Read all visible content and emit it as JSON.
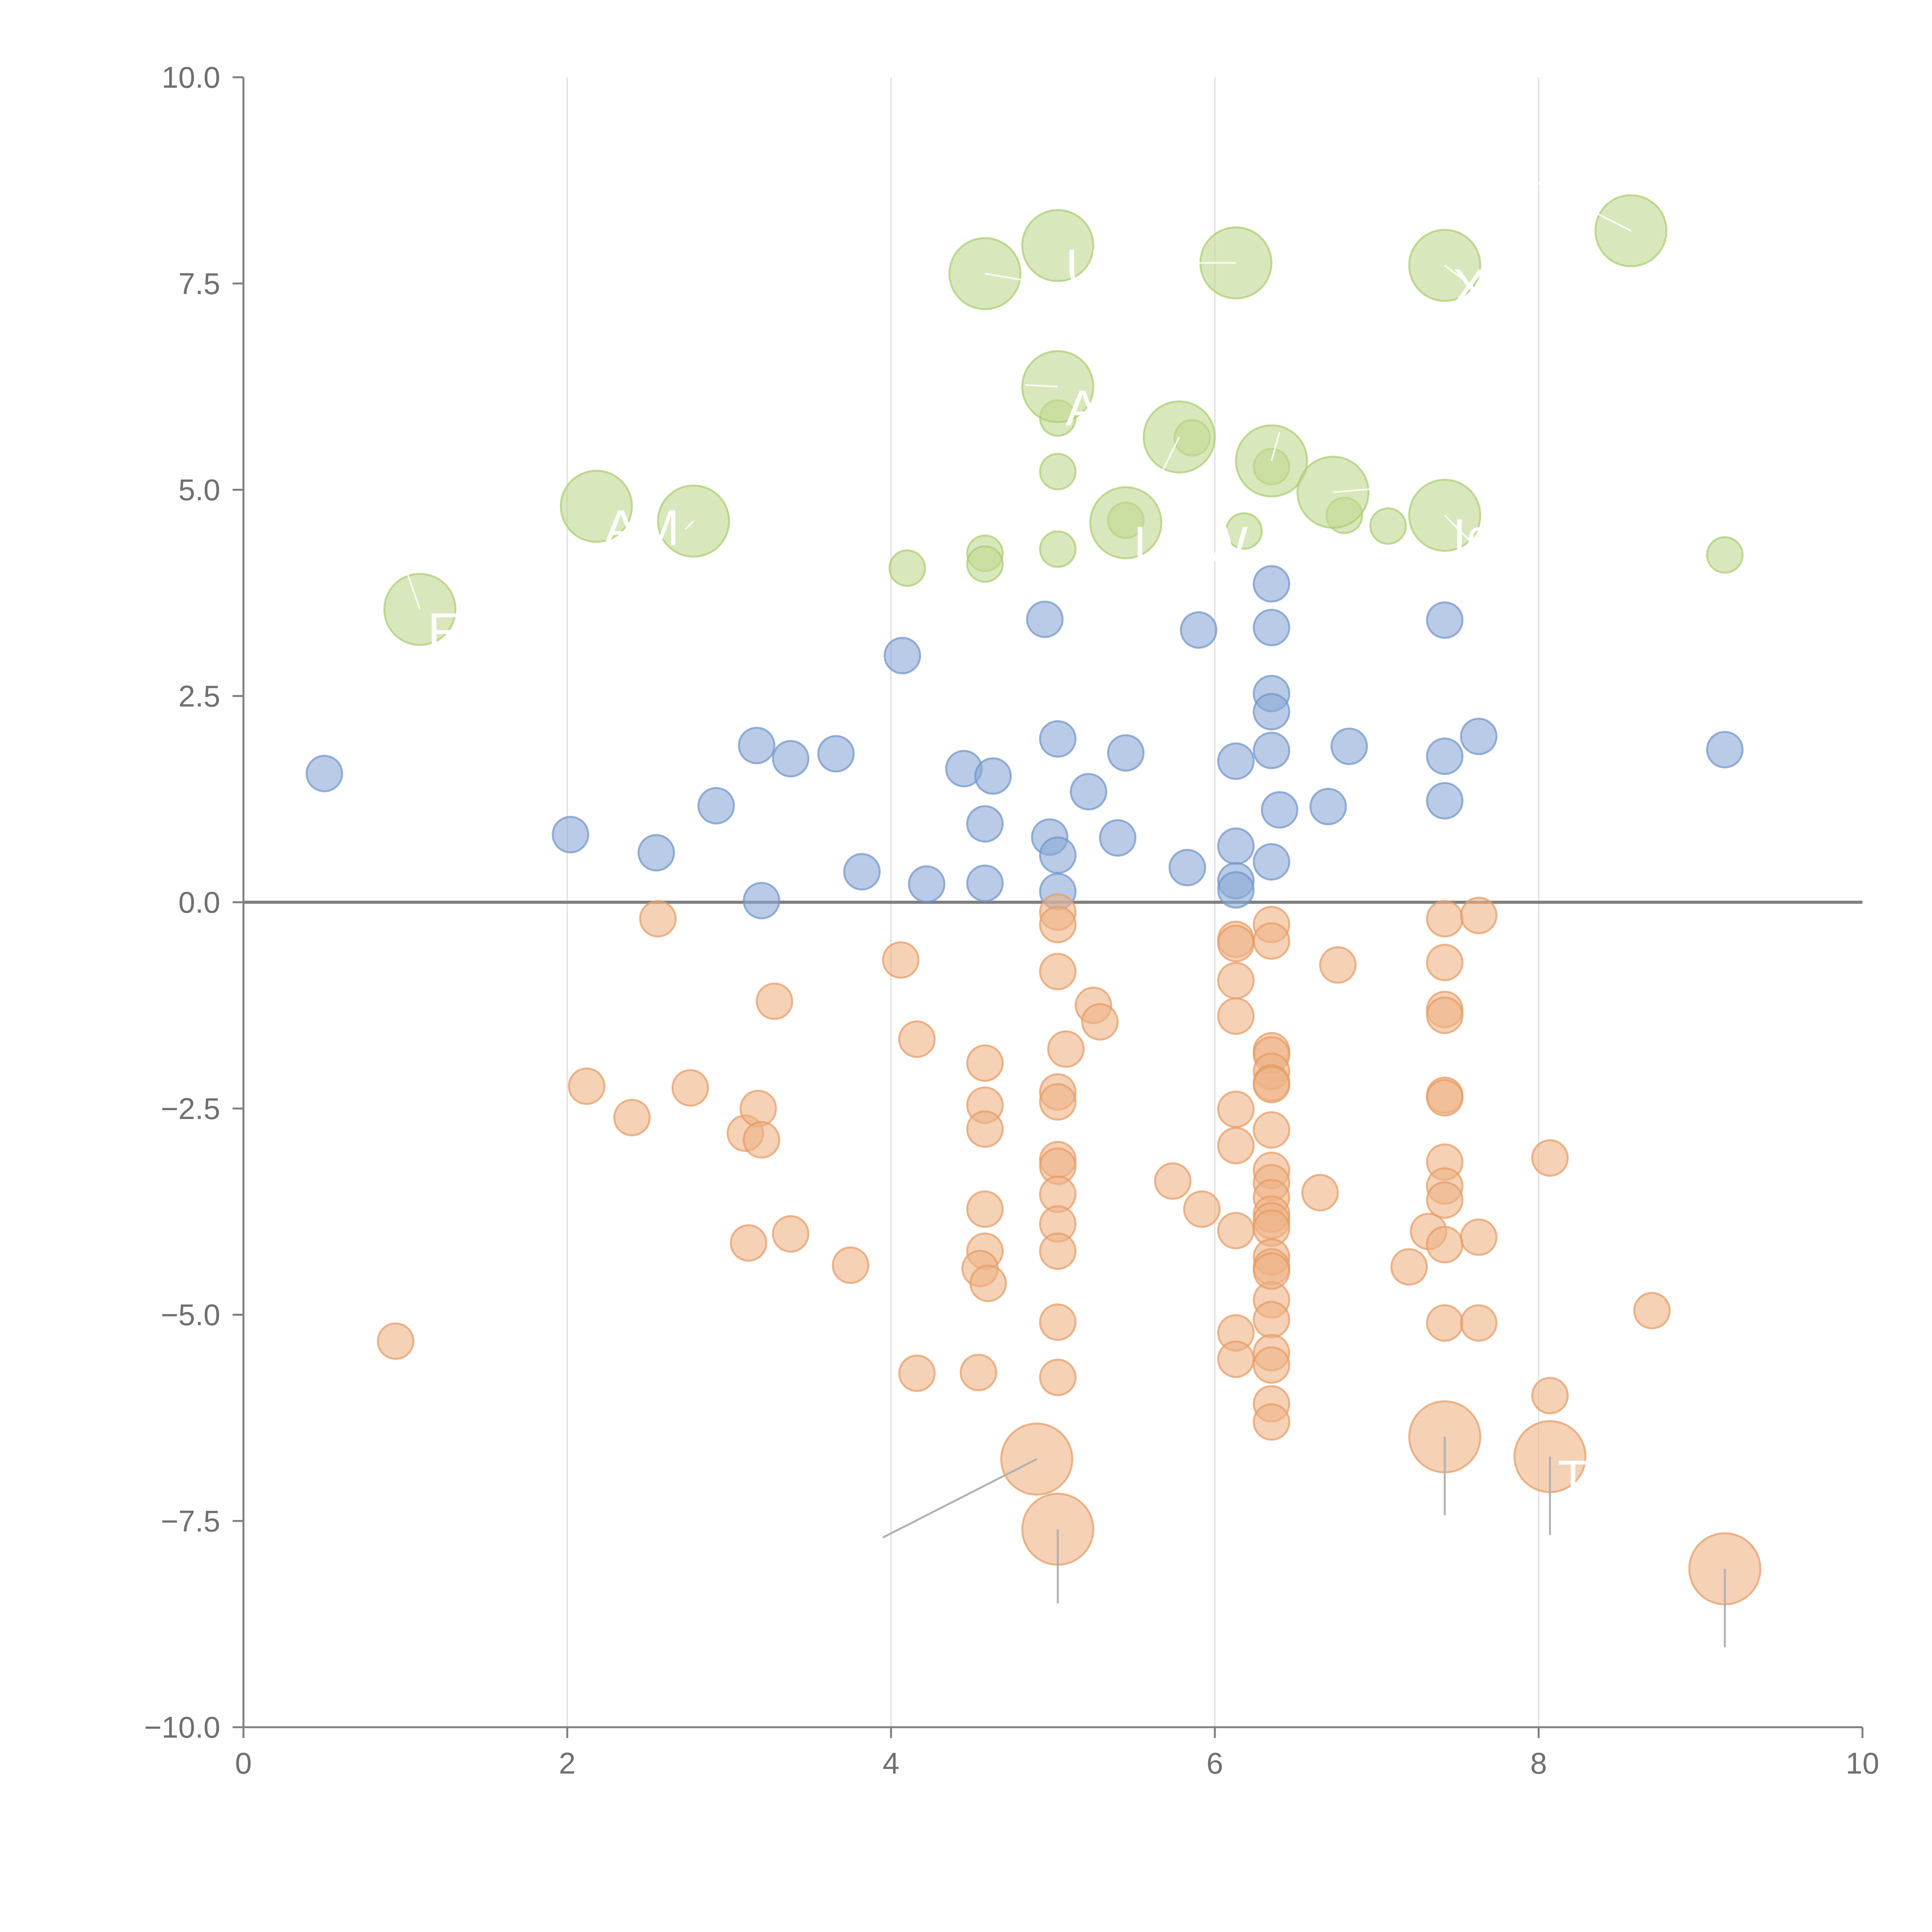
{
  "colors": {
    "positive": "#8ba9d6",
    "negative": "#efb385",
    "highlight": "#bfd98f",
    "axis": "#7f7f7f",
    "grid": "#dddddd",
    "label": "#ffffff",
    "leader": "#b0b0b0"
  },
  "chart_data": {
    "type": "scatter",
    "title": "",
    "xlabel": "",
    "ylabel": "",
    "xlim": [
      0,
      10
    ],
    "ylim": [
      -10,
      10
    ],
    "x_ticks": [
      "0",
      "2",
      "4",
      "6",
      "8",
      "10"
    ],
    "y_ticks": [
      "10.0",
      "7.5",
      "5.0",
      "2.5",
      "0.0",
      "−2.5",
      "−5.0",
      "−7.5",
      "−10.0"
    ],
    "grid": "vertical",
    "legend": "none",
    "series": [
      {
        "name": "positive",
        "points": [
          [
            0.5,
            1.56
          ],
          [
            2.02,
            0.82
          ],
          [
            2.55,
            0.6
          ],
          [
            2.92,
            1.17
          ],
          [
            3.17,
            1.9
          ],
          [
            3.2,
            0.02
          ],
          [
            3.38,
            1.74
          ],
          [
            3.66,
            1.8
          ],
          [
            3.82,
            0.37
          ],
          [
            4.07,
            2.99
          ],
          [
            4.22,
            0.22
          ],
          [
            4.45,
            1.62
          ],
          [
            4.58,
            0.95
          ],
          [
            4.58,
            0.23
          ],
          [
            4.63,
            1.53
          ],
          [
            4.95,
            3.43
          ],
          [
            4.98,
            0.79
          ],
          [
            5.03,
            1.98
          ],
          [
            5.03,
            0.57
          ],
          [
            5.03,
            0.13
          ],
          [
            5.22,
            1.34
          ],
          [
            5.4,
            0.78
          ],
          [
            5.45,
            1.81
          ],
          [
            5.83,
            0.42
          ],
          [
            5.9,
            3.3
          ],
          [
            6.13,
            1.71
          ],
          [
            6.13,
            0.68
          ],
          [
            6.13,
            0.26
          ],
          [
            6.13,
            0.15
          ],
          [
            6.35,
            3.86
          ],
          [
            6.35,
            3.33
          ],
          [
            6.35,
            2.53
          ],
          [
            6.35,
            2.31
          ],
          [
            6.35,
            1.84
          ],
          [
            6.35,
            0.49
          ],
          [
            6.4,
            1.12
          ],
          [
            6.7,
            1.16
          ],
          [
            6.83,
            1.89
          ],
          [
            7.42,
            3.42
          ],
          [
            7.42,
            1.77
          ],
          [
            7.42,
            1.23
          ],
          [
            7.63,
            2.01
          ],
          [
            9.15,
            1.85
          ]
        ]
      },
      {
        "name": "negative",
        "points": [
          [
            0.94,
            -5.32
          ],
          [
            2.12,
            -2.23
          ],
          [
            2.4,
            -2.61
          ],
          [
            2.56,
            -0.2
          ],
          [
            2.76,
            -2.25
          ],
          [
            3.1,
            -2.8
          ],
          [
            3.12,
            -4.13
          ],
          [
            3.18,
            -2.5
          ],
          [
            3.2,
            -2.88
          ],
          [
            3.28,
            -1.2
          ],
          [
            3.38,
            -4.02
          ],
          [
            3.75,
            -4.4
          ],
          [
            4.06,
            -0.7
          ],
          [
            4.16,
            -1.66
          ],
          [
            4.16,
            -5.71
          ],
          [
            4.54,
            -5.7
          ],
          [
            4.58,
            -1.95
          ],
          [
            4.58,
            -2.46
          ],
          [
            4.58,
            -2.75
          ],
          [
            4.58,
            -3.72
          ],
          [
            4.58,
            -4.23
          ],
          [
            4.55,
            -4.44
          ],
          [
            4.6,
            -4.62
          ],
          [
            5.03,
            -0.12
          ],
          [
            5.03,
            -0.27
          ],
          [
            5.03,
            -0.84
          ],
          [
            5.03,
            -2.3
          ],
          [
            5.03,
            -2.42
          ],
          [
            5.03,
            -3.12
          ],
          [
            5.03,
            -3.2
          ],
          [
            5.03,
            -3.54
          ],
          [
            5.03,
            -3.9
          ],
          [
            5.03,
            -4.23
          ],
          [
            5.03,
            -5.09
          ],
          [
            5.03,
            -5.76
          ],
          [
            5.08,
            -1.78
          ],
          [
            5.25,
            -1.25
          ],
          [
            5.29,
            -1.45
          ],
          [
            5.74,
            -3.38
          ],
          [
            5.92,
            -3.72
          ],
          [
            6.13,
            -0.45
          ],
          [
            6.13,
            -0.5
          ],
          [
            6.13,
            -0.95
          ],
          [
            6.13,
            -1.38
          ],
          [
            6.13,
            -2.51
          ],
          [
            6.13,
            -2.95
          ],
          [
            6.13,
            -3.98
          ],
          [
            6.13,
            -5.22
          ],
          [
            6.13,
            -5.54
          ],
          [
            6.35,
            -0.27
          ],
          [
            6.35,
            -0.47
          ],
          [
            6.35,
            -1.8
          ],
          [
            6.35,
            -1.85
          ],
          [
            6.35,
            -2.05
          ],
          [
            6.35,
            -2.19
          ],
          [
            6.35,
            -2.21
          ],
          [
            6.35,
            -2.76
          ],
          [
            6.35,
            -3.25
          ],
          [
            6.35,
            -3.4
          ],
          [
            6.35,
            -3.58
          ],
          [
            6.35,
            -3.78
          ],
          [
            6.35,
            -3.86
          ],
          [
            6.35,
            -3.95
          ],
          [
            6.35,
            -4.3
          ],
          [
            6.35,
            -4.42
          ],
          [
            6.35,
            -4.82
          ],
          [
            6.35,
            -5.06
          ],
          [
            6.35,
            -5.46
          ],
          [
            6.35,
            -5.61
          ],
          [
            6.35,
            -6.08
          ],
          [
            6.35,
            -6.3
          ],
          [
            6.35,
            -4.47
          ],
          [
            6.65,
            -3.52
          ],
          [
            6.76,
            -0.76
          ],
          [
            7.2,
            -4.42
          ],
          [
            7.32,
            -3.99
          ],
          [
            7.42,
            -0.2
          ],
          [
            7.42,
            -0.73
          ],
          [
            7.42,
            -1.3
          ],
          [
            7.42,
            -1.37
          ],
          [
            7.42,
            -2.34
          ],
          [
            7.42,
            -2.37
          ],
          [
            7.42,
            -3.15
          ],
          [
            7.42,
            -3.44
          ],
          [
            7.42,
            -3.61
          ],
          [
            7.42,
            -4.15
          ],
          [
            7.42,
            -5.1
          ],
          [
            7.63,
            -0.16
          ],
          [
            7.63,
            -4.06
          ],
          [
            7.63,
            -5.1
          ],
          [
            8.07,
            -3.1
          ],
          [
            8.07,
            -5.98
          ],
          [
            8.7,
            -4.95
          ]
        ]
      },
      {
        "name": "highlight",
        "points": [
          [
            4.1,
            4.05
          ],
          [
            4.58,
            4.23
          ],
          [
            4.58,
            4.1
          ],
          [
            5.03,
            5.87
          ],
          [
            5.03,
            5.22
          ],
          [
            5.03,
            4.28
          ],
          [
            5.45,
            4.63
          ],
          [
            5.86,
            5.63
          ],
          [
            6.18,
            4.5
          ],
          [
            6.35,
            5.28
          ],
          [
            6.8,
            4.69
          ],
          [
            7.07,
            4.56
          ],
          [
            9.15,
            4.21
          ]
        ]
      }
    ],
    "annotated_points": [
      {
        "name": "upper",
        "x": 1.09,
        "y": 3.55,
        "label": "F"
      },
      {
        "name": "upper",
        "x": 2.18,
        "y": 4.8,
        "label": "AM"
      },
      {
        "name": "upper",
        "x": 2.78,
        "y": 4.62,
        "label": ""
      },
      {
        "name": "upper",
        "x": 4.58,
        "y": 7.62,
        "label": ""
      },
      {
        "name": "upper",
        "x": 5.03,
        "y": 7.96,
        "label": "UT"
      },
      {
        "name": "upper",
        "x": 5.03,
        "y": 6.25,
        "label": "A"
      },
      {
        "name": "upper",
        "x": 5.78,
        "y": 5.64,
        "label": ""
      },
      {
        "name": "upper",
        "x": 6.13,
        "y": 7.75,
        "label": ""
      },
      {
        "name": "upper",
        "x": 6.35,
        "y": 5.35,
        "label": ""
      },
      {
        "name": "upper",
        "x": 6.73,
        "y": 4.97,
        "label": ""
      },
      {
        "name": "upper",
        "x": 7.42,
        "y": 7.72,
        "label": "X"
      },
      {
        "name": "upper",
        "x": 7.42,
        "y": 4.69,
        "label": "Ic"
      },
      {
        "name": "upper",
        "x": 8.57,
        "y": 8.14,
        "label": ""
      },
      {
        "name": "upper",
        "x": 5.45,
        "y": 4.6,
        "label": "LOW"
      },
      {
        "name": "lower",
        "x": 4.9,
        "y": -6.75,
        "label": ""
      },
      {
        "name": "lower",
        "x": 5.03,
        "y": -7.6,
        "label": ""
      },
      {
        "name": "lower",
        "x": 7.42,
        "y": -6.48,
        "label": ""
      },
      {
        "name": "lower",
        "x": 8.07,
        "y": -6.72,
        "label": "T"
      },
      {
        "name": "lower",
        "x": 9.15,
        "y": -8.08,
        "label": ""
      }
    ]
  }
}
